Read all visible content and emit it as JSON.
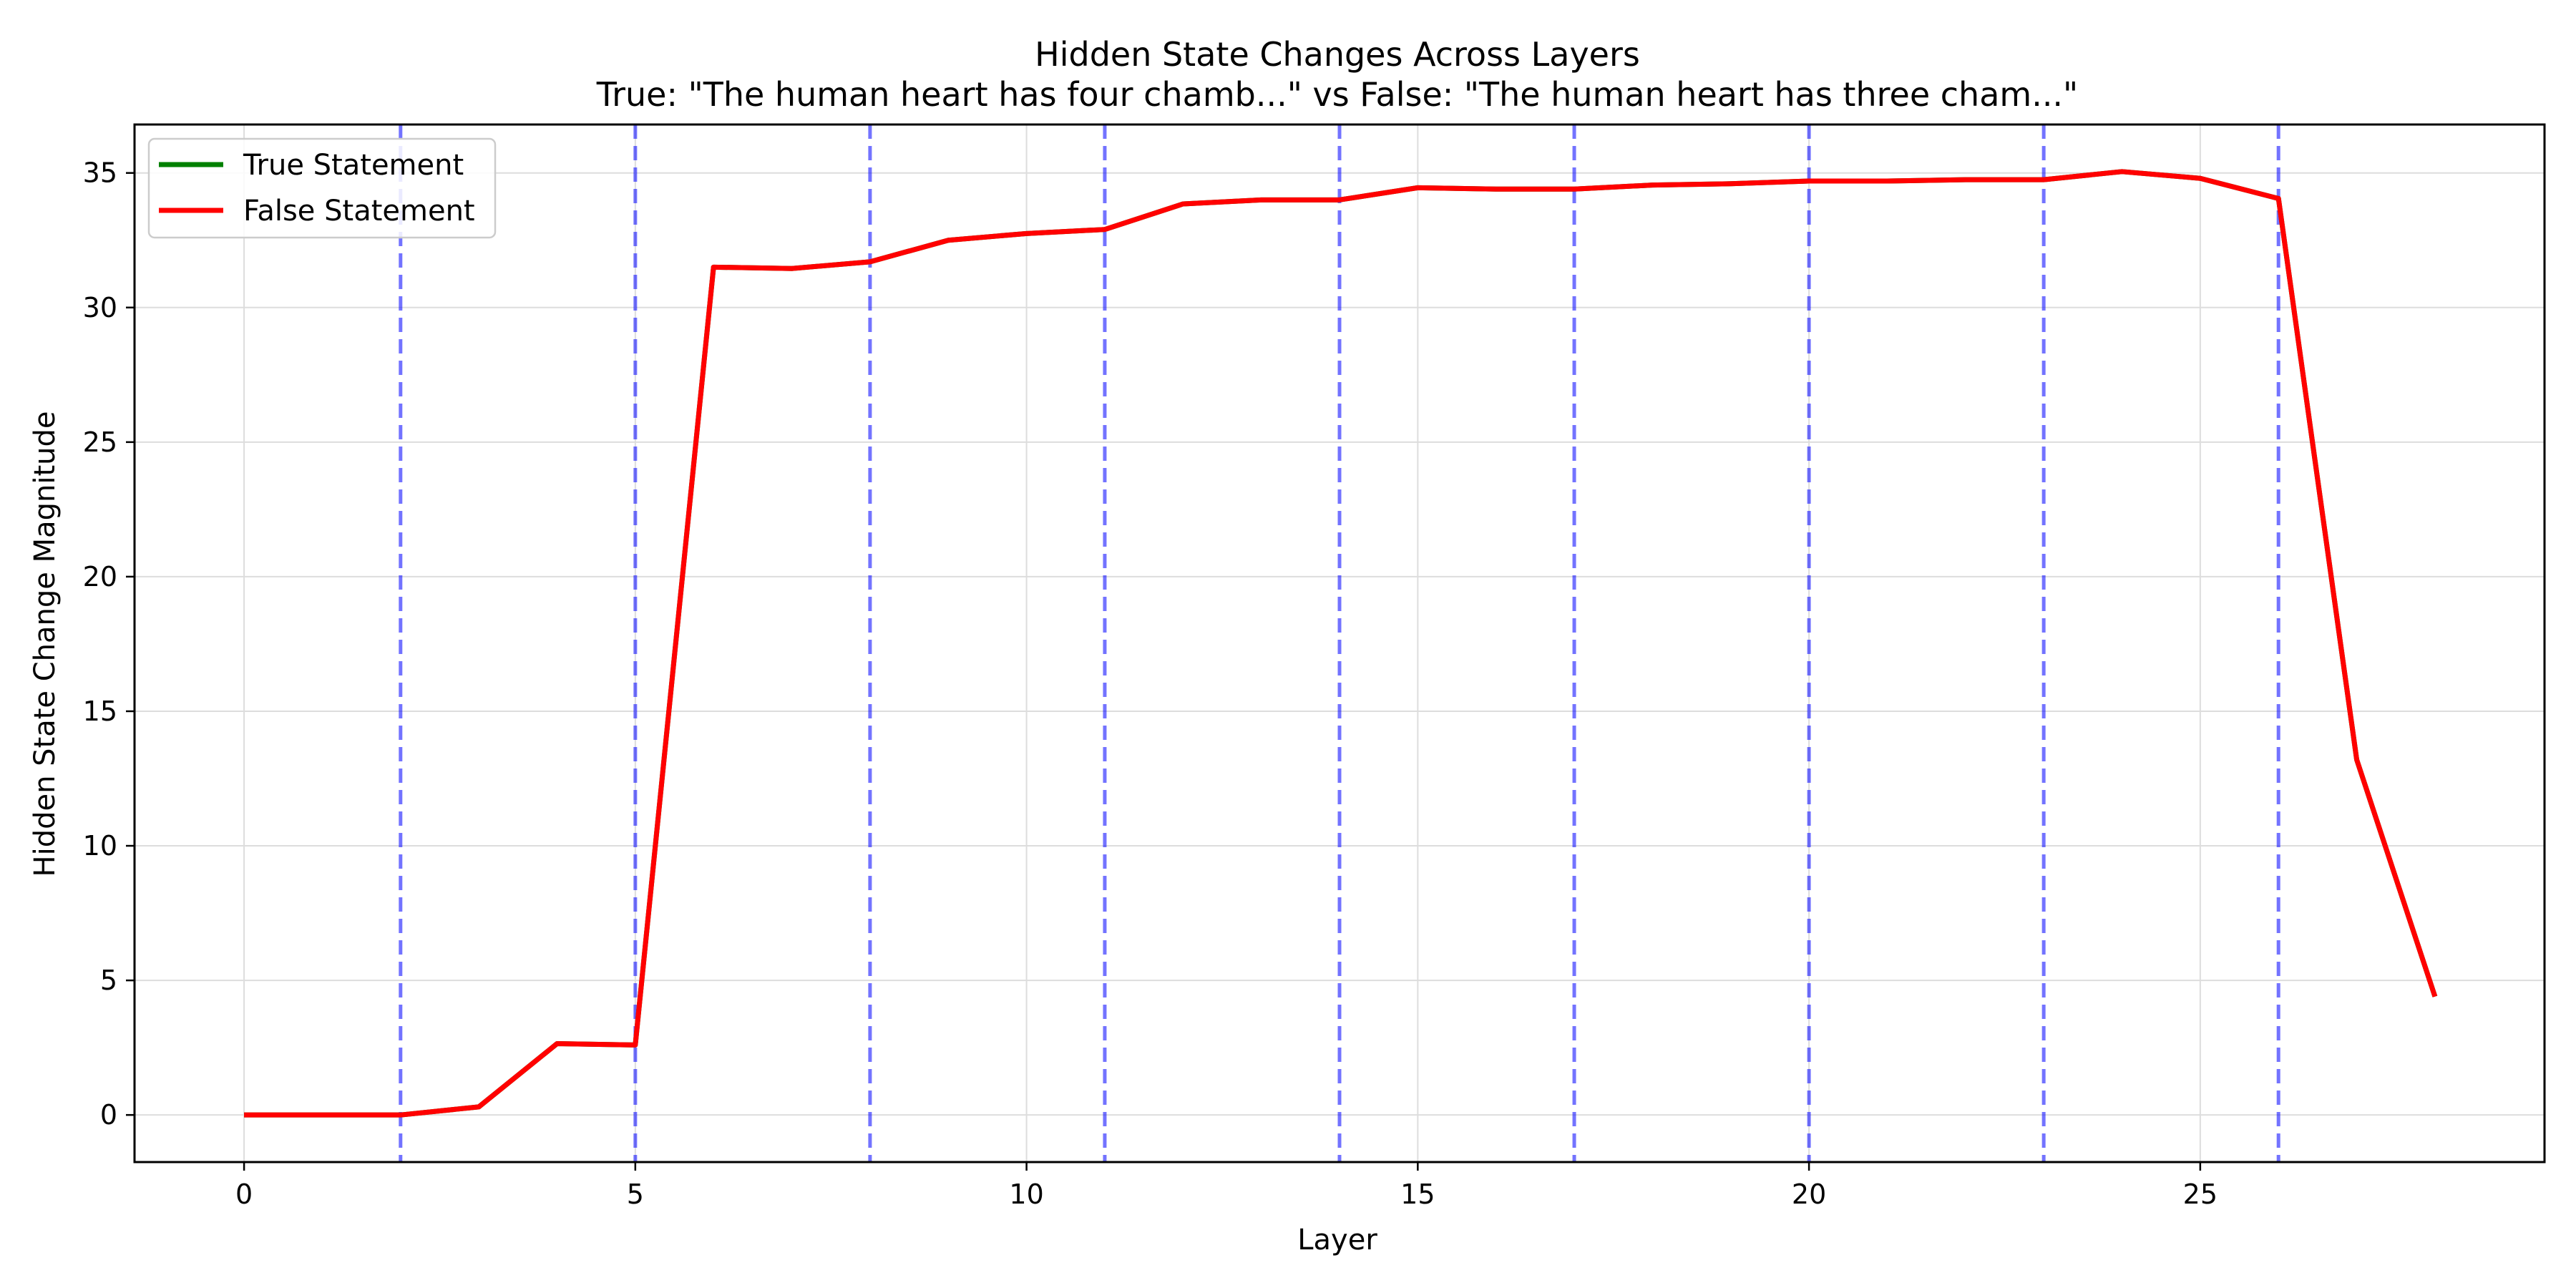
{
  "chart_data": {
    "type": "line",
    "title": "Hidden State Changes Across Layers",
    "subtitle": "True: \"The human heart has four chamb...\" vs False: \"The human heart has three cham...\"",
    "xlabel": "Layer",
    "ylabel": "Hidden State Change Magnitude",
    "xlim": [
      -1.4,
      29.4
    ],
    "ylim": [
      -1.75,
      36.8
    ],
    "xticks": [
      0,
      5,
      10,
      15,
      20,
      25
    ],
    "yticks": [
      0,
      5,
      10,
      15,
      20,
      25,
      30,
      35
    ],
    "grid": true,
    "legend_position": "top-left",
    "x": [
      0,
      1,
      2,
      3,
      4,
      5,
      6,
      7,
      8,
      9,
      10,
      11,
      12,
      13,
      14,
      15,
      16,
      17,
      18,
      19,
      20,
      21,
      22,
      23,
      24,
      25,
      26,
      27,
      28
    ],
    "series": [
      {
        "name": "True Statement",
        "color": "#008000",
        "values": [
          0,
          0,
          0,
          0.3,
          2.65,
          2.6,
          31.5,
          31.45,
          31.7,
          32.5,
          32.75,
          32.9,
          33.85,
          34.0,
          34.0,
          34.45,
          34.4,
          34.4,
          34.55,
          34.6,
          34.7,
          34.7,
          34.75,
          34.75,
          35.05,
          34.8,
          34.05,
          13.2,
          4.4
        ]
      },
      {
        "name": "False Statement",
        "color": "#ff0000",
        "values": [
          0,
          0,
          0,
          0.3,
          2.65,
          2.6,
          31.5,
          31.45,
          31.7,
          32.5,
          32.75,
          32.9,
          33.85,
          34.0,
          34.0,
          34.45,
          34.4,
          34.4,
          34.55,
          34.6,
          34.7,
          34.7,
          34.75,
          34.75,
          35.05,
          34.8,
          34.05,
          13.2,
          4.4
        ]
      }
    ],
    "vlines": {
      "x": [
        2,
        5,
        8,
        11,
        14,
        17,
        20,
        23,
        26
      ],
      "color": "#0000ff",
      "style": "dashed"
    }
  }
}
